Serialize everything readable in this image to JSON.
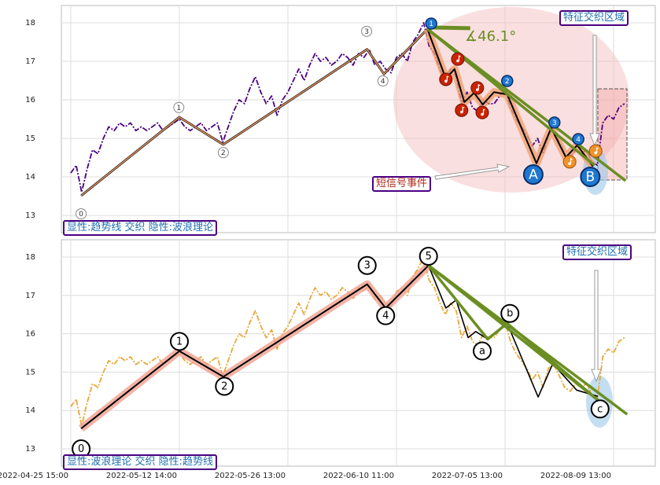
{
  "chart_data": [
    {
      "type": "line",
      "annotations": [
        "显性:趋势线 交织 隐性:波浪理论",
        "特征交织区域",
        "短信号事件",
        "∡46.1°"
      ],
      "xlim": [
        -1.74,
        107.68
      ],
      "ylim": [
        12.55,
        18.45
      ],
      "yticks": [
        13,
        14,
        15,
        16,
        17,
        18
      ],
      "grid": true,
      "series": [
        {
          "style": "dashdot",
          "color": "#4b0082",
          "values": [
            14.1,
            14.3,
            13.6,
            14.2,
            14.7,
            14.6,
            15.0,
            15.3,
            15.2,
            15.4,
            15.3,
            15.4,
            15.2,
            15.3,
            15.2,
            15.3,
            15.4,
            15.2,
            15.3,
            15.4,
            15.5,
            15.3,
            15.2,
            15.3,
            15.4,
            15.2,
            15.3,
            15.4,
            14.9,
            15.3,
            15.7,
            16.0,
            15.9,
            16.3,
            16.6,
            16.2,
            15.9,
            16.1,
            15.6,
            16.0,
            16.2,
            16.5,
            16.8,
            16.5,
            16.9,
            17.2,
            17.0,
            17.1,
            16.9,
            17.0,
            17.2,
            17.1,
            16.9,
            17.2,
            17.1,
            17.3,
            16.9,
            17.0,
            16.8,
            16.7,
            17.1,
            17.2,
            17.0,
            17.5,
            17.7,
            18.0,
            17.4,
            17.2,
            16.8,
            16.5,
            16.8,
            16.6,
            15.9,
            16.2,
            15.8,
            15.7,
            16.0,
            15.9,
            15.9,
            16.1,
            16.3,
            15.8,
            15.5,
            15.3,
            15.1,
            14.8,
            15.0,
            14.6,
            15.1,
            15.2,
            14.9,
            14.6,
            14.5,
            14.7,
            14.6,
            14.7,
            14.4,
            14.3,
            15.4,
            15.6,
            15.5,
            15.8,
            15.9
          ]
        },
        {
          "style": "thin",
          "color": "#e8925a",
          "x": [
            1.9,
            20,
            28.1,
            54.6,
            57.7,
            65.7
          ],
          "values": [
            13.51,
            15.55,
            14.84,
            17.31,
            16.67,
            17.84
          ]
        },
        {
          "style": "zigzag",
          "color": "#000000",
          "halo": "#f0a070",
          "x": [
            65.7,
            69.1,
            70.7,
            72.5,
            74.3,
            75.9,
            77.97,
            80.4,
            85.8,
            88.5,
            91.2,
            93.3,
            96.2
          ],
          "values": [
            17.84,
            16.55,
            16.8,
            15.94,
            16.18,
            15.88,
            16.2,
            16.14,
            14.35,
            15.27,
            14.51,
            14.82,
            14.27
          ]
        },
        {
          "style": "trend",
          "color": "#6b8e23",
          "x": [
            65.7,
            102.2
          ],
          "values": [
            17.84,
            13.9
          ]
        },
        {
          "style": "trend",
          "color": "#6b8e23",
          "x": [
            65.7,
            96.5
          ],
          "values": [
            17.84,
            14.3
          ]
        },
        {
          "style": "bold",
          "color": "#6b8e23",
          "x": [
            65.9,
            73.6
          ],
          "values": [
            17.88,
            17.86
          ]
        }
      ],
      "markers": [
        {
          "kind": "gray",
          "x": 1.9,
          "y": 13.04,
          "label": "0"
        },
        {
          "kind": "gray",
          "x": 19.9,
          "y": 15.8,
          "label": "1"
        },
        {
          "kind": "gray",
          "x": 28.1,
          "y": 14.63,
          "label": "2"
        },
        {
          "kind": "gray",
          "x": 54.5,
          "y": 17.78,
          "label": "3"
        },
        {
          "kind": "gray",
          "x": 57.5,
          "y": 16.49,
          "label": "4"
        },
        {
          "kind": "note-red",
          "x": 71.3,
          "y": 17.06
        },
        {
          "kind": "note-red",
          "x": 69.1,
          "y": 16.53
        },
        {
          "kind": "note-red",
          "x": 72,
          "y": 15.73
        },
        {
          "kind": "note-red",
          "x": 74.9,
          "y": 16.31
        },
        {
          "kind": "note-red",
          "x": 75.8,
          "y": 15.67
        },
        {
          "kind": "note-orange",
          "x": 91.9,
          "y": 14.39
        },
        {
          "kind": "note-orange",
          "x": 96.7,
          "y": 14.67
        },
        {
          "kind": "blue",
          "x": 66.4,
          "y": 17.98,
          "label": "1"
        },
        {
          "kind": "blue",
          "x": 80.4,
          "y": 16.49,
          "label": "2"
        },
        {
          "kind": "blue",
          "x": 89.1,
          "y": 15.41,
          "label": "3"
        },
        {
          "kind": "blue",
          "x": 93.5,
          "y": 14.98,
          "label": "4"
        },
        {
          "kind": "big",
          "x": 85.2,
          "y": 14.06,
          "label": "A"
        },
        {
          "kind": "big",
          "x": 95.7,
          "y": 14.0,
          "label": "B"
        }
      ]
    },
    {
      "type": "line",
      "annotations": [
        "显性:波浪理论 交织 隐性:趋势线",
        "特征交织区域"
      ],
      "xlim": [
        -1.74,
        107.68
      ],
      "ylim": [
        12.55,
        18.45
      ],
      "yticks": [
        13,
        14,
        15,
        16,
        17,
        18
      ],
      "grid": true,
      "xticks": [
        {
          "value": 0,
          "label": "2022-04-25 15:00"
        },
        {
          "value": 20,
          "label": "2022-05-12 14:00"
        },
        {
          "value": 40,
          "label": "2022-05-26 13:00"
        },
        {
          "value": 60,
          "label": "2022-06-10 11:00"
        },
        {
          "value": 80,
          "label": "2022-07-05 13:00"
        },
        {
          "value": 100,
          "label": "2022-08-09 13:00"
        }
      ],
      "series": [
        {
          "style": "dashdot",
          "color": "#e8a93a",
          "values": [
            14.1,
            14.3,
            13.6,
            14.2,
            14.7,
            14.6,
            15.0,
            15.3,
            15.2,
            15.4,
            15.3,
            15.4,
            15.2,
            15.3,
            15.2,
            15.3,
            15.4,
            15.2,
            15.3,
            15.4,
            15.5,
            15.3,
            15.2,
            15.3,
            15.4,
            15.2,
            15.3,
            15.4,
            14.9,
            15.3,
            15.7,
            16.0,
            15.9,
            16.3,
            16.6,
            16.2,
            15.9,
            16.1,
            15.6,
            16.0,
            16.2,
            16.5,
            16.8,
            16.5,
            16.9,
            17.2,
            17.0,
            17.1,
            16.9,
            17.0,
            17.2,
            17.1,
            16.9,
            17.2,
            17.1,
            17.3,
            16.9,
            17.0,
            16.8,
            16.7,
            17.1,
            17.2,
            17.0,
            17.5,
            17.7,
            18.0,
            17.4,
            17.2,
            16.8,
            16.5,
            16.8,
            16.6,
            15.9,
            16.2,
            15.8,
            15.7,
            16.0,
            15.9,
            15.9,
            16.1,
            16.3,
            15.8,
            15.5,
            15.3,
            15.1,
            14.8,
            15.0,
            14.6,
            15.1,
            15.2,
            14.9,
            14.6,
            14.5,
            14.7,
            14.6,
            14.7,
            14.4,
            14.3,
            15.4,
            15.6,
            15.5,
            15.8,
            15.9
          ]
        },
        {
          "style": "zigzag",
          "color": "#000000",
          "halo": "#f0a090",
          "x": [
            1.9,
            20,
            28.1,
            54.6,
            58,
            65.9
          ],
          "values": [
            13.53,
            15.55,
            14.88,
            17.29,
            16.67,
            17.78
          ]
        },
        {
          "style": "plain",
          "color": "#000000",
          "x": [
            65.9,
            69.1,
            71,
            73.2,
            74.6,
            76.8,
            80.4,
            86.1,
            88.8,
            93.2,
            97.1
          ],
          "values": [
            17.78,
            16.67,
            16.88,
            15.9,
            16.06,
            15.86,
            16.27,
            14.35,
            15.22,
            14.53,
            14.37
          ]
        },
        {
          "style": "trend",
          "color": "#6b8e23",
          "x": [
            65.9,
            102.5
          ],
          "values": [
            17.78,
            13.9
          ]
        },
        {
          "style": "trend",
          "color": "#6b8e23",
          "x": [
            65.9,
            97.1
          ],
          "values": [
            17.78,
            14.27
          ]
        },
        {
          "style": "trend",
          "color": "#6b8e23",
          "x": [
            65.9,
            76.8,
            80.4,
            97.1
          ],
          "values": [
            17.78,
            15.86,
            16.27,
            14.27
          ]
        }
      ],
      "markers": [
        {
          "kind": "black",
          "x": 1.9,
          "y": 13.0,
          "label": "0"
        },
        {
          "kind": "black",
          "x": 20,
          "y": 15.8,
          "label": "1"
        },
        {
          "kind": "black",
          "x": 28.3,
          "y": 14.63,
          "label": "2"
        },
        {
          "kind": "black",
          "x": 54.6,
          "y": 17.78,
          "label": "3"
        },
        {
          "kind": "black",
          "x": 58,
          "y": 16.47,
          "label": "4"
        },
        {
          "kind": "black",
          "x": 65.9,
          "y": 18.02,
          "label": "5"
        },
        {
          "kind": "black",
          "x": 75.8,
          "y": 15.55,
          "label": "a"
        },
        {
          "kind": "black",
          "x": 80.9,
          "y": 16.53,
          "label": "b"
        },
        {
          "kind": "black",
          "x": 97.5,
          "y": 14.04,
          "label": "c"
        }
      ]
    }
  ]
}
